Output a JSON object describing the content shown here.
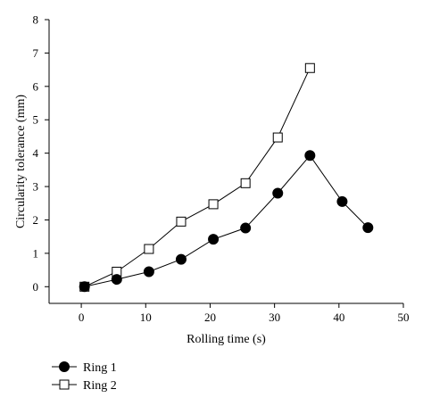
{
  "chart_data": {
    "type": "line",
    "xlabel": "Rolling time (s)",
    "ylabel": "Circularity tolerance (mm)",
    "xlim": [
      -5,
      50
    ],
    "ylim": [
      -0.5,
      8
    ],
    "x_ticks": [
      0,
      10,
      20,
      30,
      40,
      50
    ],
    "y_ticks": [
      0,
      1,
      2,
      3,
      4,
      5,
      6,
      7,
      8
    ],
    "legend_position": "bottom-left",
    "series": [
      {
        "name": "Ring 1",
        "marker": "filled-circle",
        "color": "#000000",
        "x": [
          0.5,
          5.5,
          10.5,
          15.5,
          20.5,
          25.5,
          30.5,
          35.5,
          40.5,
          44.5
        ],
        "y": [
          0.0,
          0.22,
          0.45,
          0.82,
          1.42,
          1.76,
          2.8,
          3.93,
          2.55,
          1.77
        ]
      },
      {
        "name": "Ring 2",
        "marker": "open-square",
        "color": "#000000",
        "x": [
          0.5,
          5.5,
          10.5,
          15.5,
          20.5,
          25.5,
          30.5,
          35.5
        ],
        "y": [
          0.0,
          0.45,
          1.13,
          1.95,
          2.47,
          3.1,
          4.47,
          6.55
        ]
      }
    ]
  }
}
